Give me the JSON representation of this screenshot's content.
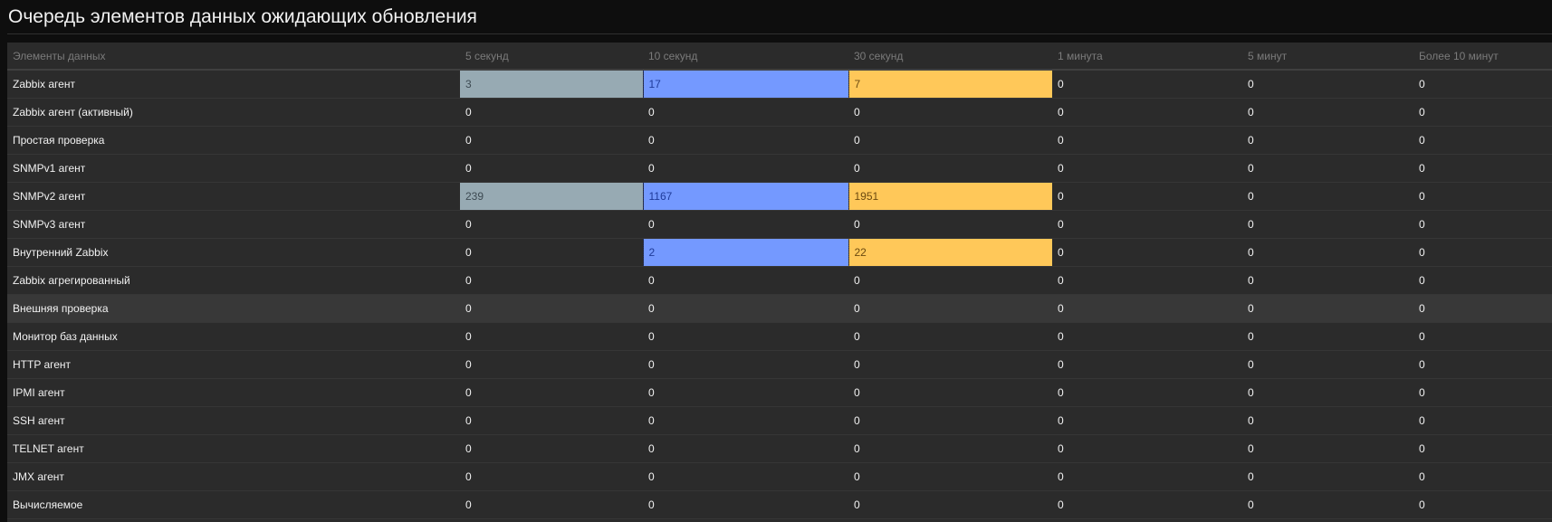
{
  "page": {
    "title": "Очередь элементов данных ожидающих обновления"
  },
  "colors": {
    "grey": "#97aab3",
    "blue": "#7499ff",
    "orange": "#ffc859"
  },
  "table": {
    "headers": [
      "Элементы данных",
      "5 секунд",
      "10 секунд",
      "30 секунд",
      "1 минута",
      "5 минут",
      "Более 10 минут"
    ],
    "rows": [
      {
        "name": "Zabbix агент",
        "values": [
          "3",
          "17",
          "7",
          "0",
          "0",
          "0"
        ]
      },
      {
        "name": "Zabbix агент (активный)",
        "values": [
          "0",
          "0",
          "0",
          "0",
          "0",
          "0"
        ]
      },
      {
        "name": "Простая проверка",
        "values": [
          "0",
          "0",
          "0",
          "0",
          "0",
          "0"
        ]
      },
      {
        "name": "SNMPv1 агент",
        "values": [
          "0",
          "0",
          "0",
          "0",
          "0",
          "0"
        ]
      },
      {
        "name": "SNMPv2 агент",
        "values": [
          "239",
          "1167",
          "1951",
          "0",
          "0",
          "0"
        ]
      },
      {
        "name": "SNMPv3 агент",
        "values": [
          "0",
          "0",
          "0",
          "0",
          "0",
          "0"
        ]
      },
      {
        "name": "Внутренний Zabbix",
        "values": [
          "0",
          "2",
          "22",
          "0",
          "0",
          "0"
        ]
      },
      {
        "name": "Zabbix агрегированный",
        "values": [
          "0",
          "0",
          "0",
          "0",
          "0",
          "0"
        ]
      },
      {
        "name": "Внешняя проверка",
        "values": [
          "0",
          "0",
          "0",
          "0",
          "0",
          "0"
        ]
      },
      {
        "name": "Монитор баз данных",
        "values": [
          "0",
          "0",
          "0",
          "0",
          "0",
          "0"
        ]
      },
      {
        "name": "HTTP агент",
        "values": [
          "0",
          "0",
          "0",
          "0",
          "0",
          "0"
        ]
      },
      {
        "name": "IPMI агент",
        "values": [
          "0",
          "0",
          "0",
          "0",
          "0",
          "0"
        ]
      },
      {
        "name": "SSH агент",
        "values": [
          "0",
          "0",
          "0",
          "0",
          "0",
          "0"
        ]
      },
      {
        "name": "TELNET агент",
        "values": [
          "0",
          "0",
          "0",
          "0",
          "0",
          "0"
        ]
      },
      {
        "name": "JMX агент",
        "values": [
          "0",
          "0",
          "0",
          "0",
          "0",
          "0"
        ]
      },
      {
        "name": "Вычисляемое",
        "values": [
          "0",
          "0",
          "0",
          "0",
          "0",
          "0"
        ]
      }
    ]
  }
}
